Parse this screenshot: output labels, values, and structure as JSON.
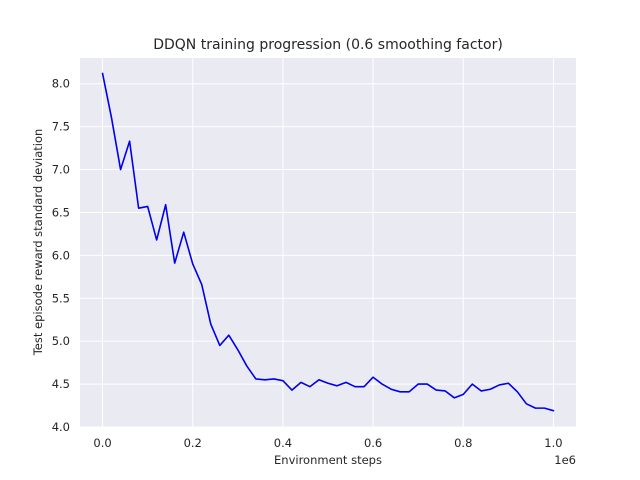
{
  "chart_data": {
    "type": "line",
    "title": "DDQN training progression (0.6 smoothing factor)",
    "xlabel": "Environment steps",
    "ylabel": "Test episode reward standard deviation",
    "x_offset_label": "1e6",
    "xlim": [
      -0.05,
      1.05
    ],
    "ylim": [
      4.0,
      8.3
    ],
    "x_ticks": [
      0.0,
      0.2,
      0.4,
      0.6,
      0.8,
      1.0
    ],
    "x_tick_labels": [
      "0.0",
      "0.2",
      "0.4",
      "0.6",
      "0.8",
      "1.0"
    ],
    "y_ticks": [
      4.0,
      4.5,
      5.0,
      5.5,
      6.0,
      6.5,
      7.0,
      7.5,
      8.0
    ],
    "y_tick_labels": [
      "4.0",
      "4.5",
      "5.0",
      "5.5",
      "6.0",
      "6.5",
      "7.0",
      "7.5",
      "8.0"
    ],
    "grid": true,
    "background_color": "#eaeaf2",
    "series": [
      {
        "color": "#0000ee",
        "x": [
          0.0,
          0.02,
          0.04,
          0.06,
          0.08,
          0.1,
          0.12,
          0.14,
          0.16,
          0.18,
          0.2,
          0.22,
          0.24,
          0.26,
          0.28,
          0.3,
          0.32,
          0.34,
          0.36,
          0.38,
          0.4,
          0.42,
          0.44,
          0.46,
          0.48,
          0.5,
          0.52,
          0.54,
          0.56,
          0.58,
          0.6,
          0.62,
          0.64,
          0.66,
          0.68,
          0.7,
          0.72,
          0.74,
          0.76,
          0.78,
          0.8,
          0.82,
          0.84,
          0.86,
          0.88,
          0.9,
          0.92,
          0.94,
          0.96,
          0.98,
          1.0
        ],
        "y": [
          8.12,
          7.6,
          7.0,
          7.33,
          6.55,
          6.57,
          6.18,
          6.59,
          5.91,
          6.27,
          5.9,
          5.66,
          5.2,
          4.95,
          5.07,
          4.9,
          4.71,
          4.56,
          4.55,
          4.56,
          4.54,
          4.43,
          4.52,
          4.47,
          4.55,
          4.51,
          4.48,
          4.52,
          4.47,
          4.47,
          4.58,
          4.5,
          4.44,
          4.41,
          4.41,
          4.5,
          4.5,
          4.43,
          4.42,
          4.34,
          4.38,
          4.5,
          4.42,
          4.44,
          4.49,
          4.51,
          4.41,
          4.27,
          4.22,
          4.22,
          4.19
        ]
      }
    ]
  }
}
